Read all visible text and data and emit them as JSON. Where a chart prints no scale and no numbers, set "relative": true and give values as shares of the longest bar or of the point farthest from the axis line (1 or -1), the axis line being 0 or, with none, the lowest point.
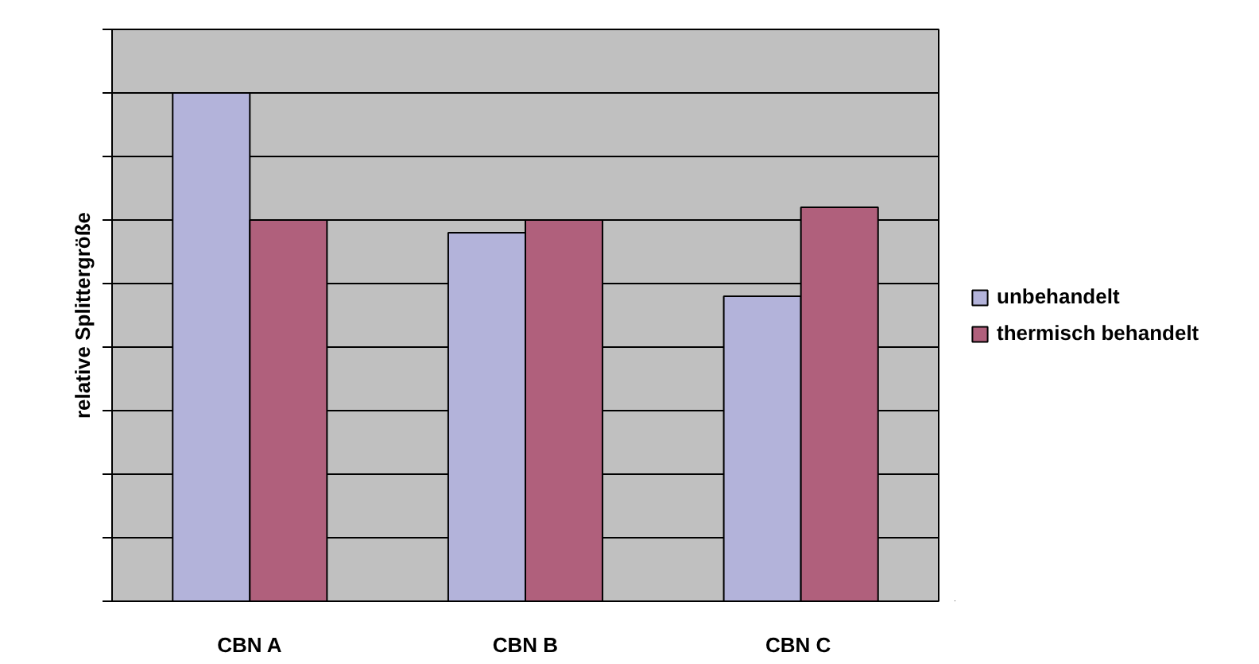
{
  "chart_data": {
    "type": "bar",
    "ylabel": "relative Splittergröße",
    "categories": [
      "CBN A",
      "CBN B",
      "CBN  C"
    ],
    "series": [
      {
        "name": "unbehandelt",
        "color": "#b3b3da",
        "values": [
          1,
          0.725,
          0.6
        ]
      },
      {
        "name": "thermisch behandelt",
        "color": "#b0607c",
        "values": [
          0.75,
          0.75,
          0.775
        ]
      }
    ],
    "relative": true,
    "grid": "y",
    "legend": "right"
  }
}
